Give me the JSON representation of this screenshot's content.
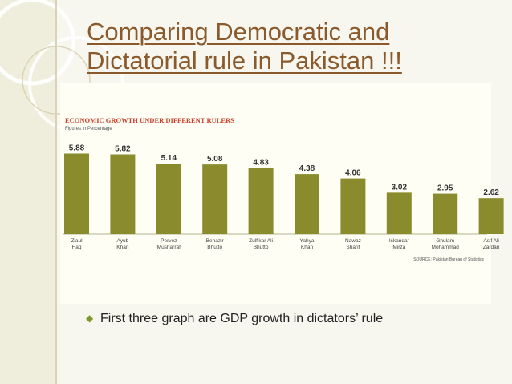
{
  "slide": {
    "title_line1": "Comparing Democratic and",
    "title_line2": "Dictatorial rule in Pakistan !!!",
    "bullet": "First three graph are GDP growth in dictators’ rule",
    "bullet_icon": "diamond-bullet-icon"
  },
  "chart_data": {
    "type": "bar",
    "title": "ECONOMIC GROWTH UNDER DIFFERENT RULERS",
    "subtitle": "Figures in Percentage",
    "source": "SOURCE: Pakistan Bureau of Statistics",
    "categories": [
      [
        "Ziaul",
        "Haq"
      ],
      [
        "Ayub",
        "Khan"
      ],
      [
        "Pervez",
        "Musharraf"
      ],
      [
        "Benazir",
        "Bhutto"
      ],
      [
        "Zulfikar Ali",
        "Bhutto"
      ],
      [
        "Yahya",
        "Khan"
      ],
      [
        "Nawaz",
        "Sharif"
      ],
      [
        "Iskandar",
        "Mirza"
      ],
      [
        "Ghulam",
        "Mohammad"
      ],
      [
        "Asif Ali",
        "Zardari"
      ]
    ],
    "values": [
      5.88,
      5.82,
      5.14,
      5.08,
      4.83,
      4.38,
      4.06,
      3.02,
      2.95,
      2.62
    ],
    "value_labels": [
      "5.88",
      "5.82",
      "5.14",
      "5.08",
      "4.83",
      "4.38",
      "4.06",
      "3.02",
      "2.95",
      "2.62"
    ],
    "ylim": [
      0,
      6.2
    ],
    "colors": {
      "bar": "#8a8b2c",
      "title": "#c8422b",
      "text": "#333333"
    }
  }
}
